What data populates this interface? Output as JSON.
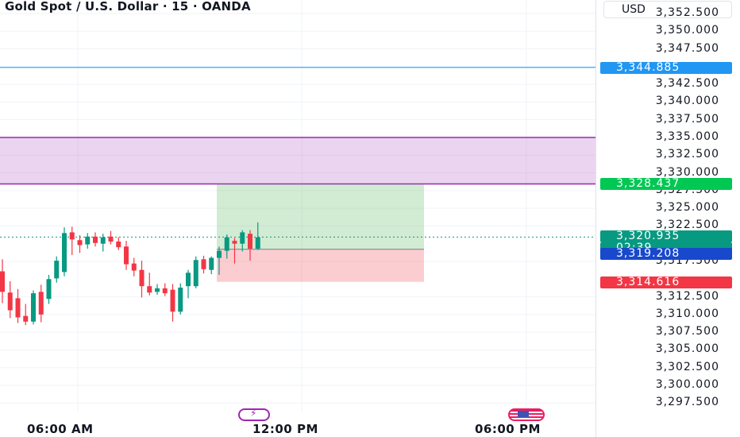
{
  "header": {
    "title": "Gold Spot / U.S. Dollar · 15 · OANDA",
    "currency": "USD"
  },
  "price_axis": {
    "ticks": [
      "3,352.500",
      "3,350.000",
      "3,347.500",
      "3,342.500",
      "3,340.000",
      "3,337.500",
      "3,335.000",
      "3,332.500",
      "3,330.000",
      "3,327.500",
      "3,325.000",
      "3,322.500",
      "3,317.500",
      "3,312.500",
      "3,310.000",
      "3,307.500",
      "3,305.000",
      "3,302.500",
      "3,300.000",
      "3,297.500"
    ],
    "badges": [
      {
        "name": "alert-line-price",
        "text": "3,344.885",
        "color": "#2196f3"
      },
      {
        "name": "zone-bottom-price",
        "text": "3,328.437",
        "color": "#00c853"
      },
      {
        "name": "current-price",
        "text": "3,320.935",
        "color": "#089981"
      },
      {
        "name": "countdown",
        "text": "02:39",
        "color": "#089981"
      },
      {
        "name": "entry-price",
        "text": "3,319.208",
        "color": "#1848cc"
      },
      {
        "name": "stop-price",
        "text": "3,314.616",
        "color": "#f23645"
      }
    ]
  },
  "time_axis": {
    "ticks": [
      "06:00 AM",
      "12:00 PM",
      "06:00 PM"
    ]
  },
  "icons": [
    "flash-icon",
    "us-flag-icon"
  ],
  "colors": {
    "up": "#089981",
    "down": "#f23645",
    "zone": "#9c27b0",
    "alert_line": "#2196f3"
  },
  "chart_data": {
    "type": "candlestick",
    "symbol": "XAUUSD",
    "interval": "15",
    "ylim": [
      3296.3,
      3354.4
    ],
    "horizontal_lines": [
      3344.885
    ],
    "zones": [
      {
        "top": 3335.0,
        "bottom": 3328.437,
        "color": "#9c27b0"
      }
    ],
    "position": {
      "type": "long",
      "entry": 3319.208,
      "target": 3328.437,
      "stop": 3314.616
    },
    "current_price": 3320.935,
    "candles": [
      {
        "o": 3316.1,
        "h": 3317.8,
        "l": 3311.6,
        "c": 3313.2
      },
      {
        "o": 3313.1,
        "h": 3314.7,
        "l": 3309.5,
        "c": 3310.6
      },
      {
        "o": 3312.3,
        "h": 3313.6,
        "l": 3308.8,
        "c": 3309.6
      },
      {
        "o": 3309.8,
        "h": 3311.5,
        "l": 3308.5,
        "c": 3309.0
      },
      {
        "o": 3309.0,
        "h": 3313.4,
        "l": 3308.6,
        "c": 3313.0
      },
      {
        "o": 3313.2,
        "h": 3314.2,
        "l": 3308.9,
        "c": 3310.0
      },
      {
        "o": 3312.2,
        "h": 3315.6,
        "l": 3311.5,
        "c": 3315.0
      },
      {
        "o": 3315.1,
        "h": 3318.2,
        "l": 3314.5,
        "c": 3317.6
      },
      {
        "o": 3316.0,
        "h": 3322.3,
        "l": 3315.4,
        "c": 3321.5
      },
      {
        "o": 3321.6,
        "h": 3322.4,
        "l": 3318.4,
        "c": 3320.6
      },
      {
        "o": 3320.5,
        "h": 3321.2,
        "l": 3318.7,
        "c": 3319.8
      },
      {
        "o": 3319.9,
        "h": 3321.5,
        "l": 3319.3,
        "c": 3321.0
      },
      {
        "o": 3321.0,
        "h": 3321.6,
        "l": 3319.6,
        "c": 3320.1
      },
      {
        "o": 3320.0,
        "h": 3321.4,
        "l": 3318.9,
        "c": 3320.9
      },
      {
        "o": 3321.0,
        "h": 3321.8,
        "l": 3319.9,
        "c": 3320.3
      },
      {
        "o": 3320.3,
        "h": 3320.9,
        "l": 3319.1,
        "c": 3319.5
      },
      {
        "o": 3319.6,
        "h": 3320.4,
        "l": 3316.3,
        "c": 3317.1
      },
      {
        "o": 3317.2,
        "h": 3318.0,
        "l": 3315.4,
        "c": 3316.2
      },
      {
        "o": 3316.3,
        "h": 3317.6,
        "l": 3312.4,
        "c": 3314.0
      },
      {
        "o": 3314.0,
        "h": 3315.9,
        "l": 3312.7,
        "c": 3313.1
      },
      {
        "o": 3313.2,
        "h": 3314.3,
        "l": 3312.8,
        "c": 3313.7
      },
      {
        "o": 3313.7,
        "h": 3314.4,
        "l": 3312.6,
        "c": 3313.0
      },
      {
        "o": 3313.5,
        "h": 3314.3,
        "l": 3309.0,
        "c": 3310.4
      },
      {
        "o": 3310.4,
        "h": 3314.4,
        "l": 3310.0,
        "c": 3313.8
      },
      {
        "o": 3314.0,
        "h": 3316.3,
        "l": 3312.3,
        "c": 3315.9
      },
      {
        "o": 3314.0,
        "h": 3318.2,
        "l": 3313.7,
        "c": 3317.7
      },
      {
        "o": 3317.8,
        "h": 3318.3,
        "l": 3315.8,
        "c": 3316.4
      },
      {
        "o": 3316.3,
        "h": 3318.2,
        "l": 3315.7,
        "c": 3318.0
      },
      {
        "o": 3318.0,
        "h": 3319.6,
        "l": 3315.6,
        "c": 3319.0
      },
      {
        "o": 3319.0,
        "h": 3321.3,
        "l": 3317.9,
        "c": 3320.9
      },
      {
        "o": 3320.4,
        "h": 3320.8,
        "l": 3317.2,
        "c": 3320.0
      },
      {
        "o": 3320.0,
        "h": 3321.9,
        "l": 3318.9,
        "c": 3321.6
      },
      {
        "o": 3321.4,
        "h": 3321.9,
        "l": 3317.6,
        "c": 3319.3
      },
      {
        "o": 3319.3,
        "h": 3323.0,
        "l": 3319.1,
        "c": 3320.9
      }
    ]
  }
}
